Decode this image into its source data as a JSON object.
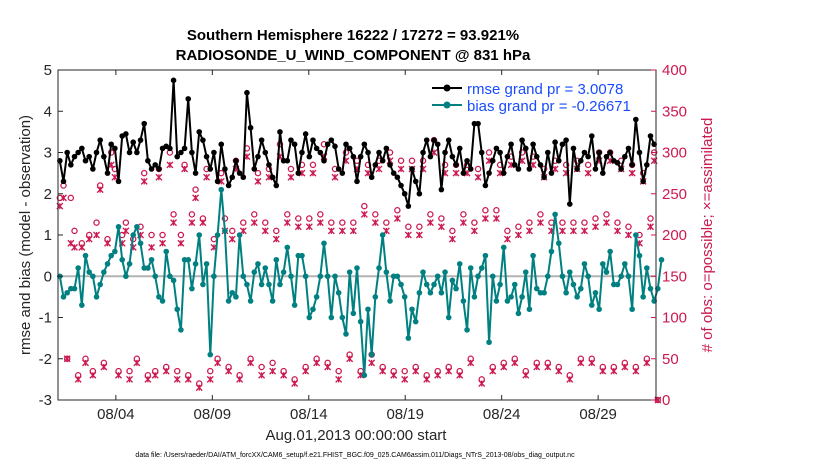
{
  "chart_data": {
    "type": "line",
    "title_line1": "Southern Hemisphere 16222 / 17272 = 93.921%",
    "title_line2": "RADIOSONDE_U_WIND_COMPONENT @ 831 hPa",
    "xlabel": "Aug.01,2013 00:00:00 start",
    "ylabel_left": "rmse and bias (model - observation)",
    "ylabel_right": "# of obs: o=possible; ×=assimilated",
    "footer": "data file: /Users/raeder/DAI/ATM_forcXX/CAM6_setup/f.e21.FHIST_BGC.f09_025.CAM6assim.011/Diags_NTrS_2013-08/obs_diag_output.nc",
    "x_tick_labels": [
      "08/04",
      "08/09",
      "08/14",
      "08/19",
      "08/24",
      "08/29"
    ],
    "x_tick_days": [
      4,
      9,
      14,
      19,
      24,
      29
    ],
    "xlim_days": [
      1,
      32
    ],
    "ylim_left": [
      -3,
      5
    ],
    "y_ticks_left": [
      "-3",
      "-2",
      "-1",
      "0",
      "1",
      "2",
      "3",
      "4",
      "5"
    ],
    "ylim_right": [
      0,
      400
    ],
    "y_ticks_right": [
      "0",
      "50",
      "100",
      "150",
      "200",
      "250",
      "300",
      "350",
      "400"
    ],
    "colors": {
      "rmse": "#000000",
      "bias": "#008080",
      "obs": "#cc1a50",
      "legend_text": "#1a4cff",
      "zero_line": "#b3b3b3"
    },
    "series": [
      {
        "name": "rmse grand pr = 3.0078",
        "axis": "left",
        "values": [
          2.8,
          2.3,
          3.0,
          2.7,
          2.9,
          3.0,
          3.1,
          2.8,
          2.9,
          2.6,
          3.0,
          3.3,
          2.9,
          2.5,
          3.2,
          3.1,
          2.3,
          3.4,
          3.45,
          3.0,
          3.25,
          3.0,
          3.3,
          3.7,
          2.8,
          2.6,
          2.7,
          2.6,
          3.1,
          3.15,
          3.1,
          4.75,
          2.9,
          3.0,
          3.1,
          4.3,
          3.0,
          2.5,
          3.5,
          3.3,
          2.9,
          2.6,
          3.0,
          2.3,
          3.2,
          2.6,
          2.2,
          2.4,
          2.8,
          2.5,
          2.4,
          4.45,
          3.6,
          2.6,
          2.9,
          3.3,
          3.0,
          2.7,
          2.4,
          2.2,
          3.5,
          2.8,
          2.8,
          3.3,
          3.2,
          2.5,
          3.0,
          3.45,
          2.9,
          3.3,
          3.1,
          3.0,
          2.8,
          3.2,
          3.3,
          3.15,
          2.6,
          2.5,
          3.2,
          3.1,
          2.9,
          2.3,
          2.9,
          3.2,
          3.0,
          2.4,
          2.7,
          3.0,
          2.8,
          3.1,
          2.7,
          2.5,
          2.4,
          2.2,
          2.0,
          1.7,
          2.6,
          2.3,
          2.0,
          3.0,
          3.3,
          2.9,
          3.3,
          3.2,
          2.1,
          3.0,
          3.3,
          2.9,
          2.7,
          3.1,
          2.5,
          2.8,
          2.6,
          3.7,
          3.7,
          3.0,
          2.2,
          2.5,
          2.8,
          3.1,
          3.0,
          2.5,
          2.9,
          3.2,
          2.7,
          2.6,
          3.3,
          3.1,
          2.6,
          3.2,
          2.9,
          2.7,
          2.4,
          3.0,
          2.5,
          3.25,
          2.8,
          3.2,
          3.3,
          1.75,
          3.1,
          2.6,
          2.8,
          3.0,
          2.9,
          3.4,
          2.6,
          3.0,
          2.5,
          2.9,
          3.0,
          2.8,
          2.75,
          2.6,
          2.9,
          3.1,
          2.7,
          3.8,
          3.0,
          2.3,
          2.7,
          3.4,
          3.2
        ]
      },
      {
        "name": "bias grand pr = -0.26671",
        "axis": "left",
        "values": [
          0.0,
          -0.5,
          -0.4,
          -0.3,
          -0.3,
          0.2,
          -0.7,
          0.5,
          0.1,
          0.0,
          -0.5,
          -0.2,
          0.1,
          0.3,
          0.5,
          0.6,
          1.2,
          0.4,
          0.0,
          0.3,
          1.0,
          1.2,
          0.8,
          0.2,
          0.2,
          0.4,
          0.0,
          -0.5,
          -0.6,
          0.6,
          0.0,
          -0.1,
          -0.8,
          -1.3,
          0.4,
          0.4,
          -0.3,
          0.3,
          1.0,
          -0.2,
          0.3,
          -1.9,
          0.0,
          1.0,
          2.1,
          1.1,
          -0.6,
          -0.4,
          -0.5,
          1.0,
          0.0,
          -0.2,
          -0.6,
          0.1,
          0.3,
          -0.2,
          0.2,
          -0.2,
          -0.6,
          0.4,
          -0.2,
          0.1,
          0.7,
          0.0,
          -0.7,
          0.5,
          0.5,
          0.0,
          -1.0,
          -0.8,
          -0.5,
          0.0,
          0.8,
          0.0,
          -1.0,
          0.0,
          -0.4,
          -1.0,
          -1.4,
          0.1,
          -0.9,
          0.2,
          -1.1,
          -2.4,
          -0.8,
          -1.9,
          -0.5,
          0.2,
          1.0,
          0.1,
          -0.6,
          0.0,
          0.0,
          -0.2,
          -0.5,
          -1.5,
          -0.8,
          -1.1,
          -0.4,
          0.1,
          -0.2,
          -0.4,
          -0.2,
          0.0,
          -0.4,
          0.1,
          -1.0,
          -0.1,
          -0.3,
          0.3,
          -0.6,
          -1.3,
          0.2,
          -0.5,
          0.0,
          0.2,
          0.5,
          -1.6,
          0.0,
          -0.6,
          -0.2,
          0.7,
          -0.6,
          -0.5,
          -0.2,
          -0.9,
          -0.5,
          0.1,
          -0.8,
          0.5,
          -0.3,
          -0.4,
          -0.4,
          0.0,
          0.6,
          1.5,
          0.8,
          0.0,
          -0.4,
          0.1,
          -0.2,
          -0.5,
          -0.3,
          0.3,
          0.0,
          -0.7,
          -0.4,
          -0.8,
          0.3,
          0.1,
          0.6,
          -0.2,
          -0.2,
          0.0,
          0.3,
          0.0,
          -0.8,
          1.0,
          0.5,
          -0.5,
          0.2,
          -0.3,
          -0.6,
          -0.3,
          0.4
        ]
      },
      {
        "name": "obs possible (o)",
        "axis": "right",
        "values": [
          245,
          260,
          50,
          245,
          205,
          30,
          190,
          50,
          200,
          35,
          215,
          260,
          45,
          195,
          300,
          280,
          35,
          200,
          215,
          35,
          195,
          50,
          210,
          275,
          30,
          200,
          35,
          280,
          200,
          40,
          300,
          225,
          35,
          200,
          285,
          30,
          225,
          255,
          20,
          220,
          280,
          35,
          195,
          50,
          275,
          220,
          40,
          205,
          290,
          30,
          215,
          305,
          50,
          225,
          275,
          40,
          215,
          280,
          45,
          205,
          310,
          35,
          225,
          280,
          25,
          220,
          285,
          40,
          220,
          285,
          50,
          225,
          310,
          45,
          215,
          280,
          35,
          215,
          300,
          55,
          215,
          290,
          35,
          235,
          285,
          55,
          225,
          290,
          40,
          215,
          300,
          35,
          230,
          290,
          35,
          210,
          290,
          40,
          210,
          290,
          30,
          225,
          315,
          35,
          220,
          285,
          40,
          205,
          285,
          35,
          225,
          285,
          50,
          215,
          280,
          25,
          230,
          300,
          40,
          230,
          285,
          45,
          205,
          295,
          50,
          210,
          300,
          35,
          215,
          295,
          45,
          225,
          280,
          45,
          215,
          290,
          40,
          215,
          285,
          30,
          215,
          290,
          50,
          215,
          285,
          50,
          220,
          300,
          40,
          225,
          300,
          40,
          215,
          290,
          45,
          210,
          285,
          40,
          200,
          275,
          50,
          220,
          300,
          0
        ]
      },
      {
        "name": "obs assimilated (×)",
        "axis": "right",
        "values": [
          235,
          245,
          50,
          190,
          185,
          25,
          185,
          45,
          195,
          30,
          200,
          255,
          40,
          190,
          285,
          270,
          30,
          190,
          205,
          25,
          185,
          45,
          200,
          265,
          25,
          185,
          30,
          270,
          190,
          35,
          285,
          215,
          25,
          190,
          280,
          25,
          215,
          245,
          15,
          215,
          270,
          25,
          185,
          45,
          265,
          205,
          35,
          195,
          280,
          25,
          205,
          295,
          45,
          215,
          265,
          30,
          205,
          270,
          35,
          195,
          295,
          30,
          215,
          270,
          20,
          210,
          275,
          35,
          210,
          275,
          45,
          215,
          295,
          40,
          205,
          270,
          25,
          205,
          290,
          50,
          205,
          280,
          30,
          225,
          275,
          45,
          215,
          280,
          35,
          205,
          290,
          30,
          220,
          280,
          25,
          200,
          280,
          35,
          200,
          280,
          25,
          215,
          300,
          30,
          210,
          275,
          35,
          195,
          275,
          30,
          215,
          275,
          45,
          205,
          270,
          20,
          220,
          290,
          35,
          220,
          275,
          40,
          195,
          285,
          45,
          200,
          290,
          30,
          205,
          285,
          40,
          215,
          270,
          40,
          205,
          280,
          35,
          205,
          275,
          25,
          205,
          280,
          45,
          205,
          275,
          45,
          210,
          290,
          35,
          215,
          290,
          35,
          205,
          280,
          40,
          200,
          275,
          35,
          190,
          265,
          45,
          210,
          290,
          0
        ]
      }
    ],
    "legend": [
      "rmse grand pr = 3.0078",
      "bias grand pr = -0.26671"
    ]
  }
}
